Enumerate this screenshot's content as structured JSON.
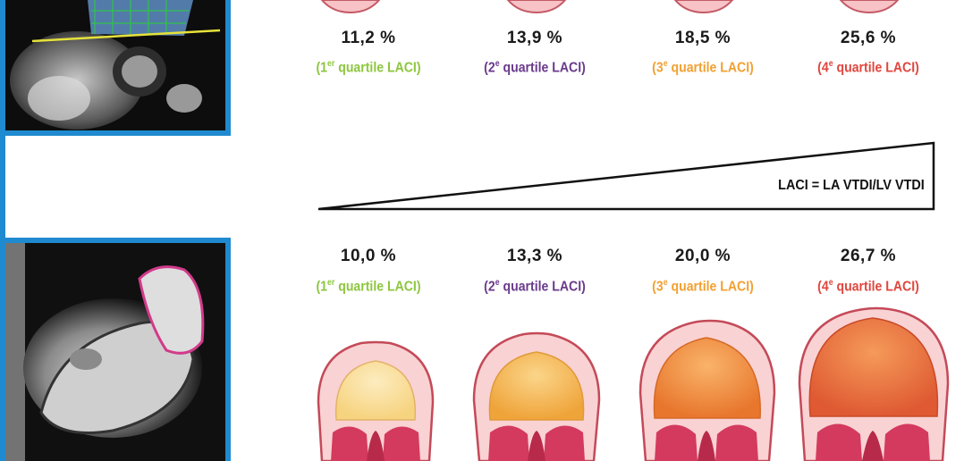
{
  "formula": "LACI = LA VTDI/LV VTDI",
  "colors": {
    "q1": "#8dc63f",
    "q2": "#6a3a8c",
    "q3": "#f2a032",
    "q4": "#e0463e",
    "frame": "#1f8ad0"
  },
  "quartile_labels": [
    {
      "open": "(1",
      "sup": "er",
      "rest": " quartile LACI)"
    },
    {
      "open": "(2",
      "sup": "e",
      "rest": " quartile LACI)"
    },
    {
      "open": "(3",
      "sup": "e",
      "rest": " quartile LACI)"
    },
    {
      "open": "(4",
      "sup": "e",
      "rest": " quartile LACI)"
    }
  ],
  "top_row": {
    "percentages": [
      "11,2 %",
      "13,9 %",
      "18,5 %",
      "25,6 %"
    ]
  },
  "bottom_row": {
    "percentages": [
      "10,0 %",
      "13,3 %",
      "20,0 %",
      "26,7 %"
    ]
  },
  "icons": [
    "mri-short-axis-image",
    "mri-long-axis-image",
    "left-atrium-heart-icon",
    "wedge-gradient-icon"
  ]
}
